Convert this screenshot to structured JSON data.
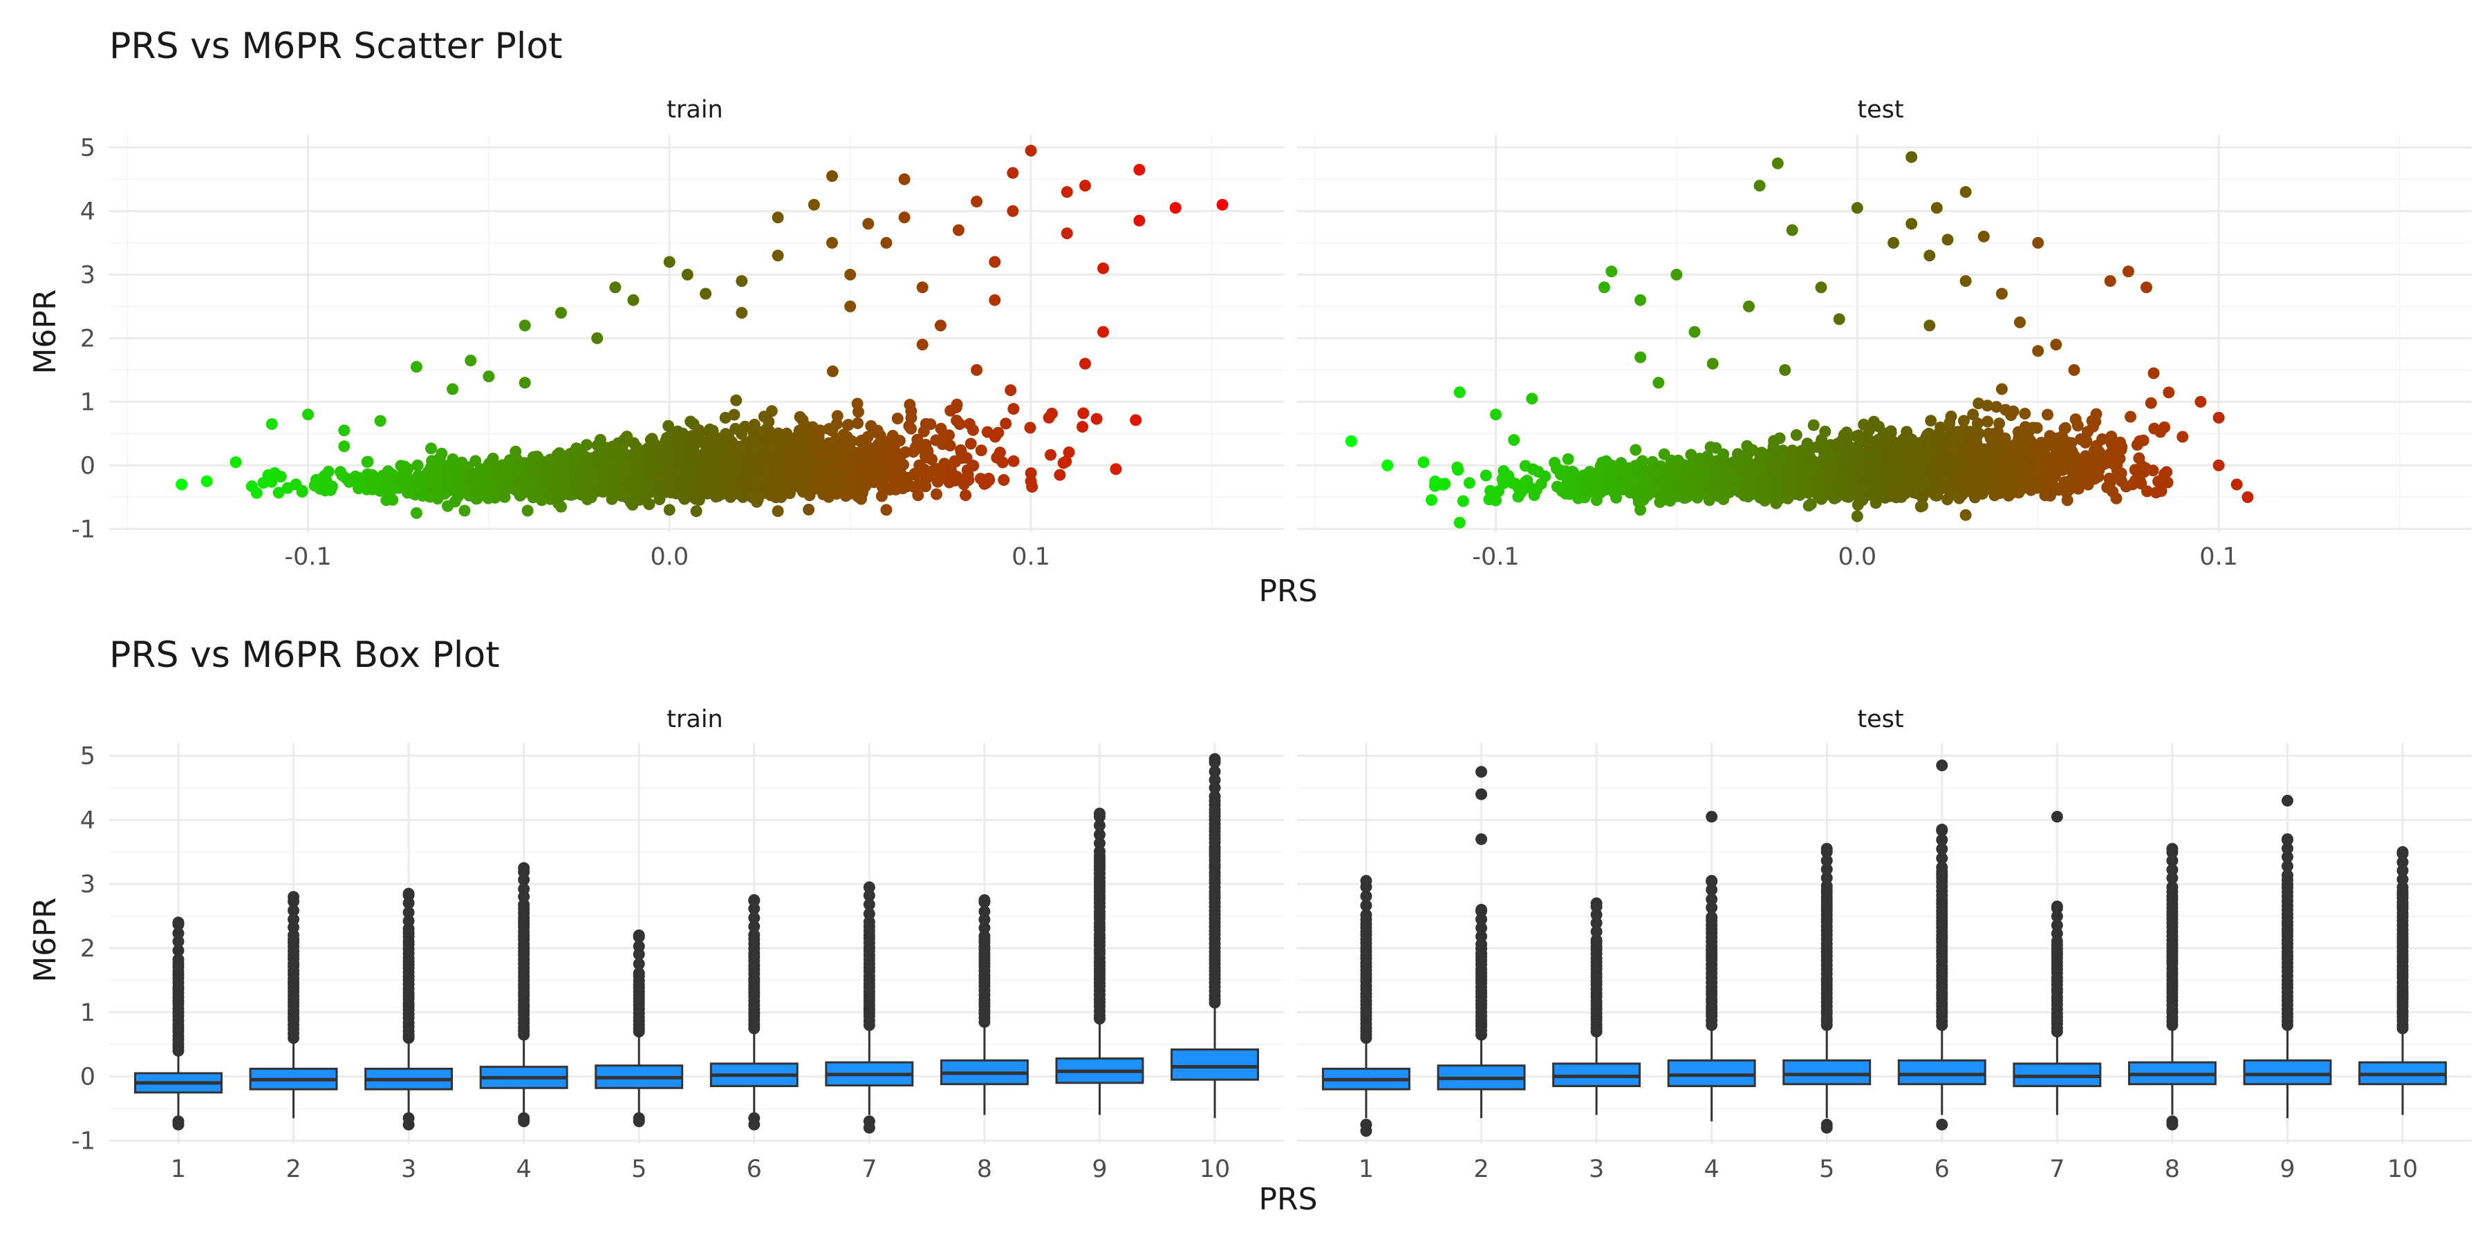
{
  "chart_data": [
    {
      "type": "scatter",
      "title": "PRS vs M6PR Scatter Plot",
      "xlabel": "PRS",
      "ylabel": "M6PR",
      "xlim": [
        -0.155,
        0.17
      ],
      "ylim": [
        -1.05,
        5.2
      ],
      "x_ticks": [
        -0.1,
        0.0,
        0.1
      ],
      "x_tick_labels": [
        "-0.1",
        "0.0",
        "0.1"
      ],
      "y_ticks": [
        -1,
        0,
        1,
        2,
        3,
        4,
        5
      ],
      "color_scale": {
        "low": "#00ff00",
        "high": "#ff0000",
        "basis": "x"
      },
      "grid": true,
      "facets": [
        {
          "label": "train",
          "x_range": [
            -0.135,
            0.153
          ],
          "points": [
            [
              -0.135,
              -0.3
            ],
            [
              -0.128,
              -0.25
            ],
            [
              -0.12,
              0.05
            ],
            [
              -0.11,
              0.65
            ],
            [
              -0.1,
              0.8
            ],
            [
              -0.09,
              0.55
            ],
            [
              -0.08,
              0.7
            ],
            [
              -0.07,
              1.55
            ],
            [
              -0.06,
              1.2
            ],
            [
              -0.055,
              1.65
            ],
            [
              -0.05,
              1.4
            ],
            [
              -0.04,
              2.2
            ],
            [
              -0.03,
              2.4
            ],
            [
              -0.02,
              2.0
            ],
            [
              -0.015,
              2.8
            ],
            [
              -0.01,
              2.6
            ],
            [
              0.0,
              3.2
            ],
            [
              0.005,
              3.0
            ],
            [
              0.01,
              2.7
            ],
            [
              0.02,
              2.9
            ],
            [
              0.03,
              3.3
            ],
            [
              0.03,
              3.9
            ],
            [
              0.04,
              4.1
            ],
            [
              0.045,
              3.5
            ],
            [
              0.045,
              4.55
            ],
            [
              0.05,
              3.0
            ],
            [
              0.055,
              3.8
            ],
            [
              0.06,
              3.5
            ],
            [
              0.065,
              4.5
            ],
            [
              0.065,
              3.9
            ],
            [
              0.07,
              2.8
            ],
            [
              0.08,
              3.7
            ],
            [
              0.085,
              4.15
            ],
            [
              0.09,
              3.2
            ],
            [
              0.095,
              4.0
            ],
            [
              0.1,
              4.95
            ],
            [
              0.095,
              4.6
            ],
            [
              0.11,
              4.3
            ],
            [
              0.115,
              4.4
            ],
            [
              0.12,
              3.1
            ],
            [
              0.13,
              4.65
            ],
            [
              0.13,
              3.85
            ],
            [
              0.14,
              4.05
            ],
            [
              0.153,
              4.1
            ],
            [
              0.11,
              3.65
            ],
            [
              0.12,
              2.1
            ],
            [
              0.115,
              1.6
            ],
            [
              0.105,
              0.75
            ],
            [
              0.1,
              -0.25
            ],
            [
              0.108,
              -0.15
            ],
            [
              0.09,
              2.6
            ],
            [
              0.075,
              2.2
            ],
            [
              0.06,
              -0.7
            ],
            [
              -0.07,
              -0.75
            ],
            [
              0.0,
              -0.7
            ],
            [
              0.03,
              -0.72
            ],
            [
              -0.03,
              -0.65
            ],
            [
              0.085,
              1.5
            ],
            [
              0.07,
              1.9
            ],
            [
              0.05,
              2.5
            ],
            [
              0.02,
              2.4
            ],
            [
              -0.04,
              1.3
            ],
            [
              -0.09,
              0.3
            ]
          ]
        },
        {
          "label": "test",
          "x_range": [
            -0.14,
            0.108
          ],
          "points": [
            [
              -0.14,
              0.38
            ],
            [
              -0.13,
              0.0
            ],
            [
              -0.12,
              0.05
            ],
            [
              -0.11,
              1.15
            ],
            [
              -0.11,
              -0.9
            ],
            [
              -0.1,
              0.8
            ],
            [
              -0.095,
              0.4
            ],
            [
              -0.09,
              1.05
            ],
            [
              -0.07,
              2.8
            ],
            [
              -0.068,
              3.05
            ],
            [
              -0.06,
              2.6
            ],
            [
              -0.055,
              1.3
            ],
            [
              -0.05,
              3.0
            ],
            [
              -0.045,
              2.1
            ],
            [
              -0.04,
              1.6
            ],
            [
              -0.03,
              2.5
            ],
            [
              -0.027,
              4.4
            ],
            [
              -0.022,
              4.75
            ],
            [
              -0.018,
              3.7
            ],
            [
              -0.01,
              2.8
            ],
            [
              -0.005,
              2.3
            ],
            [
              0.0,
              4.05
            ],
            [
              0.01,
              3.5
            ],
            [
              0.015,
              3.8
            ],
            [
              0.015,
              4.85
            ],
            [
              0.02,
              3.3
            ],
            [
              0.025,
              3.55
            ],
            [
              0.022,
              4.05
            ],
            [
              0.03,
              2.9
            ],
            [
              0.03,
              4.3
            ],
            [
              0.035,
              3.6
            ],
            [
              0.04,
              2.7
            ],
            [
              0.045,
              2.25
            ],
            [
              0.05,
              3.5
            ],
            [
              0.05,
              1.8
            ],
            [
              0.055,
              1.9
            ],
            [
              0.06,
              1.5
            ],
            [
              0.07,
              2.9
            ],
            [
              0.075,
              3.05
            ],
            [
              0.08,
              2.8
            ],
            [
              0.082,
              1.45
            ],
            [
              0.085,
              0.6
            ],
            [
              0.09,
              0.45
            ],
            [
              0.095,
              1.0
            ],
            [
              0.1,
              0.75
            ],
            [
              0.1,
              0.0
            ],
            [
              0.105,
              -0.3
            ],
            [
              0.108,
              -0.5
            ],
            [
              0.065,
              0.7
            ],
            [
              -0.1,
              -0.55
            ],
            [
              0.0,
              -0.8
            ],
            [
              0.03,
              -0.78
            ],
            [
              -0.06,
              -0.7
            ],
            [
              0.02,
              2.2
            ],
            [
              -0.02,
              1.5
            ],
            [
              0.04,
              1.2
            ],
            [
              -0.08,
              0.1
            ],
            [
              -0.06,
              1.7
            ]
          ]
        }
      ]
    },
    {
      "type": "box",
      "title": "PRS vs M6PR Box Plot",
      "xlabel": "PRS",
      "ylabel": "M6PR",
      "categories": [
        "1",
        "2",
        "3",
        "4",
        "5",
        "6",
        "7",
        "8",
        "9",
        "10"
      ],
      "ylim": [
        -1.05,
        5.2
      ],
      "y_ticks": [
        -1,
        0,
        1,
        2,
        3,
        4,
        5
      ],
      "box_fill": "#1e90ff",
      "box_stroke": "#333333",
      "grid": true,
      "facets": [
        {
          "label": "train",
          "boxes": [
            {
              "q1": -0.25,
              "median": -0.1,
              "q3": 0.05,
              "lower": -0.65,
              "upper": 0.35,
              "outlier_min": 0.4,
              "outlier_max": 2.4,
              "low_outliers": [
                -0.7,
                -0.75
              ]
            },
            {
              "q1": -0.2,
              "median": -0.05,
              "q3": 0.12,
              "lower": -0.65,
              "upper": 0.55,
              "outlier_min": 0.6,
              "outlier_max": 2.8,
              "low_outliers": []
            },
            {
              "q1": -0.2,
              "median": -0.05,
              "q3": 0.12,
              "lower": -0.6,
              "upper": 0.55,
              "outlier_min": 0.6,
              "outlier_max": 2.85,
              "low_outliers": [
                -0.65,
                -0.75
              ]
            },
            {
              "q1": -0.18,
              "median": -0.02,
              "q3": 0.15,
              "lower": -0.6,
              "upper": 0.6,
              "outlier_min": 0.65,
              "outlier_max": 3.25,
              "low_outliers": [
                -0.65,
                -0.7
              ]
            },
            {
              "q1": -0.18,
              "median": -0.02,
              "q3": 0.17,
              "lower": -0.6,
              "upper": 0.65,
              "outlier_min": 0.7,
              "outlier_max": 2.2,
              "low_outliers": [
                -0.65,
                -0.7
              ]
            },
            {
              "q1": -0.15,
              "median": 0.02,
              "q3": 0.2,
              "lower": -0.6,
              "upper": 0.7,
              "outlier_min": 0.75,
              "outlier_max": 2.75,
              "low_outliers": [
                -0.65,
                -0.75
              ]
            },
            {
              "q1": -0.14,
              "median": 0.03,
              "q3": 0.22,
              "lower": -0.6,
              "upper": 0.75,
              "outlier_min": 0.8,
              "outlier_max": 2.95,
              "low_outliers": [
                -0.7,
                -0.8
              ]
            },
            {
              "q1": -0.12,
              "median": 0.05,
              "q3": 0.25,
              "lower": -0.6,
              "upper": 0.8,
              "outlier_min": 0.85,
              "outlier_max": 2.75,
              "low_outliers": []
            },
            {
              "q1": -0.1,
              "median": 0.08,
              "q3": 0.28,
              "lower": -0.6,
              "upper": 0.85,
              "outlier_min": 0.9,
              "outlier_max": 4.1,
              "low_outliers": []
            },
            {
              "q1": -0.05,
              "median": 0.15,
              "q3": 0.42,
              "lower": -0.65,
              "upper": 1.1,
              "outlier_min": 1.15,
              "outlier_max": 4.95,
              "low_outliers": []
            }
          ]
        },
        {
          "label": "test",
          "boxes": [
            {
              "q1": -0.2,
              "median": -0.05,
              "q3": 0.12,
              "lower": -0.65,
              "upper": 0.55,
              "outlier_min": 0.6,
              "outlier_max": 3.05,
              "low_outliers": [
                -0.75,
                -0.85
              ]
            },
            {
              "q1": -0.2,
              "median": -0.03,
              "q3": 0.17,
              "lower": -0.65,
              "upper": 0.6,
              "outlier_min": 0.65,
              "outlier_max": 2.6,
              "low_outliers": [],
              "high_extra": [
                3.7,
                4.4,
                4.75
              ]
            },
            {
              "q1": -0.15,
              "median": 0.0,
              "q3": 0.2,
              "lower": -0.6,
              "upper": 0.65,
              "outlier_min": 0.7,
              "outlier_max": 2.7,
              "low_outliers": []
            },
            {
              "q1": -0.15,
              "median": 0.02,
              "q3": 0.25,
              "lower": -0.7,
              "upper": 0.75,
              "outlier_min": 0.8,
              "outlier_max": 3.05,
              "low_outliers": [],
              "high_extra": [
                4.05
              ]
            },
            {
              "q1": -0.12,
              "median": 0.03,
              "q3": 0.25,
              "lower": -0.65,
              "upper": 0.75,
              "outlier_min": 0.8,
              "outlier_max": 3.55,
              "low_outliers": [
                -0.75,
                -0.8
              ]
            },
            {
              "q1": -0.12,
              "median": 0.03,
              "q3": 0.25,
              "lower": -0.6,
              "upper": 0.75,
              "outlier_min": 0.8,
              "outlier_max": 3.85,
              "low_outliers": [
                -0.75
              ],
              "high_extra": [
                4.85
              ]
            },
            {
              "q1": -0.15,
              "median": 0.0,
              "q3": 0.2,
              "lower": -0.6,
              "upper": 0.65,
              "outlier_min": 0.7,
              "outlier_max": 2.65,
              "low_outliers": [],
              "high_extra": [
                4.05
              ]
            },
            {
              "q1": -0.12,
              "median": 0.03,
              "q3": 0.22,
              "lower": -0.6,
              "upper": 0.75,
              "outlier_min": 0.8,
              "outlier_max": 3.55,
              "low_outliers": [
                -0.7,
                -0.75
              ]
            },
            {
              "q1": -0.12,
              "median": 0.03,
              "q3": 0.25,
              "lower": -0.65,
              "upper": 0.75,
              "outlier_min": 0.8,
              "outlier_max": 3.7,
              "low_outliers": [],
              "high_extra": [
                4.3
              ]
            },
            {
              "q1": -0.12,
              "median": 0.03,
              "q3": 0.22,
              "lower": -0.6,
              "upper": 0.7,
              "outlier_min": 0.75,
              "outlier_max": 3.5,
              "low_outliers": []
            }
          ]
        }
      ]
    }
  ]
}
